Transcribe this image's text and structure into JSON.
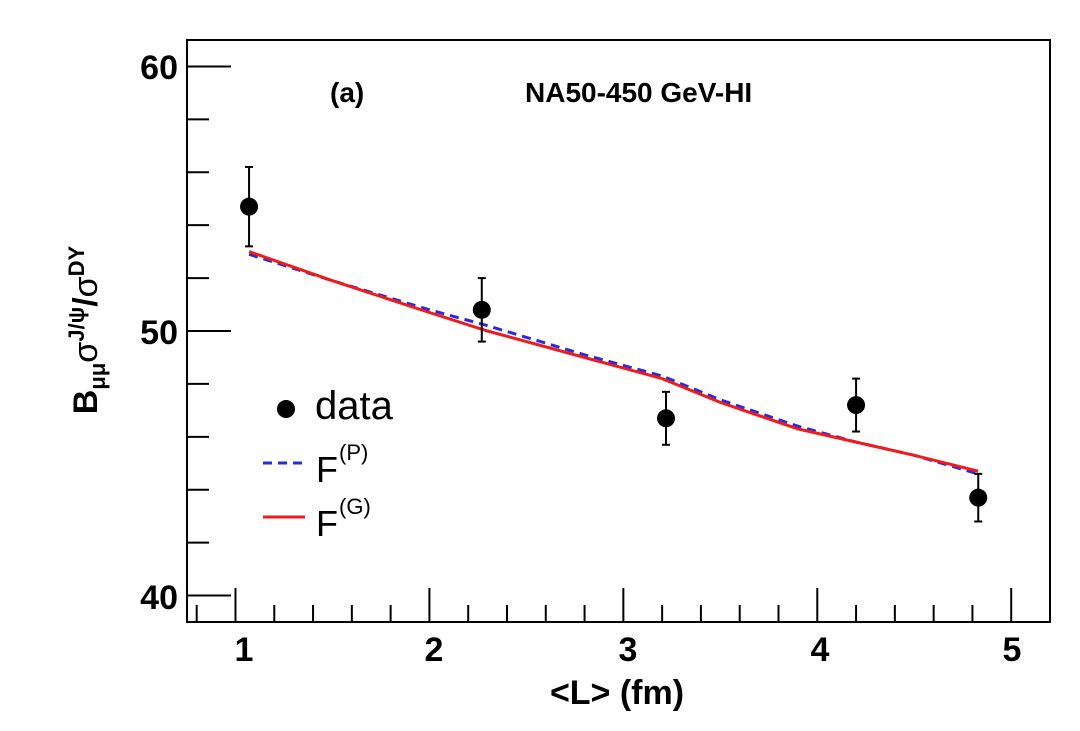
{
  "chart_data": {
    "type": "scatter",
    "title": "NA50-450 GeV-HI",
    "panel_label": "(a)",
    "xlabel": "<L> (fm)",
    "ylabel": {
      "base": "B",
      "sub1": "μμ",
      "sym": "σ",
      "sup1": "J/ψ",
      "slash": "/",
      "sym2": "σ",
      "sup2": "DY"
    },
    "xlim": [
      0.75,
      5.2
    ],
    "ylim": [
      39,
      61
    ],
    "x_ticks": [
      1,
      2,
      3,
      4,
      5
    ],
    "x_tick_labels": [
      "1",
      "2",
      "3",
      "4",
      "5"
    ],
    "y_ticks": [
      40,
      50,
      60
    ],
    "y_tick_labels": [
      "40",
      "50",
      "60"
    ],
    "grid": false,
    "legend_position": "left-middle",
    "series": [
      {
        "name": "data",
        "kind": "points",
        "color": "#000000",
        "x": [
          1.07,
          2.27,
          3.22,
          4.2,
          4.83
        ],
        "y": [
          54.7,
          50.8,
          46.7,
          47.2,
          43.7
        ],
        "yerr": [
          1.5,
          1.2,
          1.0,
          1.0,
          0.9
        ]
      },
      {
        "name": "F",
        "sup": "(P)",
        "kind": "line",
        "style": "dashed",
        "color": "#2b2bdd",
        "x": [
          1.07,
          1.5,
          2.0,
          2.3,
          2.8,
          3.2,
          3.5,
          3.9,
          4.2,
          4.5,
          4.83
        ],
        "y": [
          52.9,
          51.9,
          50.8,
          50.2,
          49.1,
          48.3,
          47.4,
          46.4,
          45.8,
          45.3,
          44.6
        ]
      },
      {
        "name": "F",
        "sup": "(G)",
        "kind": "line",
        "style": "solid",
        "color": "#ee1c1c",
        "x": [
          1.07,
          1.5,
          2.0,
          2.3,
          2.8,
          3.2,
          3.5,
          3.9,
          4.2,
          4.5,
          4.83
        ],
        "y": [
          53.0,
          51.9,
          50.7,
          50.0,
          49.0,
          48.2,
          47.3,
          46.3,
          45.8,
          45.3,
          44.7
        ]
      }
    ]
  }
}
